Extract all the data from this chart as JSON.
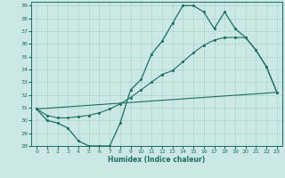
{
  "xlabel": "Humidex (Indice chaleur)",
  "xlim": [
    -0.5,
    23.5
  ],
  "ylim": [
    28,
    39.3
  ],
  "xticks": [
    0,
    1,
    2,
    3,
    4,
    5,
    6,
    7,
    8,
    9,
    10,
    11,
    12,
    13,
    14,
    15,
    16,
    17,
    18,
    19,
    20,
    21,
    22,
    23
  ],
  "yticks": [
    28,
    29,
    30,
    31,
    32,
    33,
    34,
    35,
    36,
    37,
    38,
    39
  ],
  "bg_color": "#cce8e4",
  "line_color": "#1a6e64",
  "grid_color": "#b0d8d2",
  "line1_x": [
    0,
    1,
    2,
    3,
    4,
    5,
    6,
    7,
    8,
    9,
    10,
    11,
    12,
    13,
    14,
    15,
    16,
    17,
    18,
    19,
    20,
    21,
    22,
    23
  ],
  "line1_y": [
    30.9,
    30.0,
    29.8,
    29.4,
    28.4,
    28.0,
    28.0,
    28.0,
    29.8,
    32.4,
    33.2,
    35.2,
    36.2,
    37.6,
    39.0,
    39.0,
    38.5,
    37.2,
    38.5,
    37.2,
    36.5,
    35.5,
    34.2,
    32.2
  ],
  "line2_x": [
    0,
    1,
    2,
    3,
    4,
    5,
    6,
    7,
    8,
    9,
    10,
    11,
    12,
    13,
    14,
    15,
    16,
    17,
    18,
    19,
    20,
    21,
    22,
    23
  ],
  "line2_y": [
    30.9,
    30.4,
    30.2,
    30.2,
    30.3,
    30.4,
    30.6,
    30.9,
    31.3,
    31.8,
    32.4,
    33.0,
    33.6,
    33.9,
    34.6,
    35.3,
    35.9,
    36.3,
    36.5,
    36.5,
    36.5,
    35.5,
    34.2,
    32.2
  ],
  "line3_x": [
    0,
    23
  ],
  "line3_y": [
    30.9,
    32.2
  ]
}
